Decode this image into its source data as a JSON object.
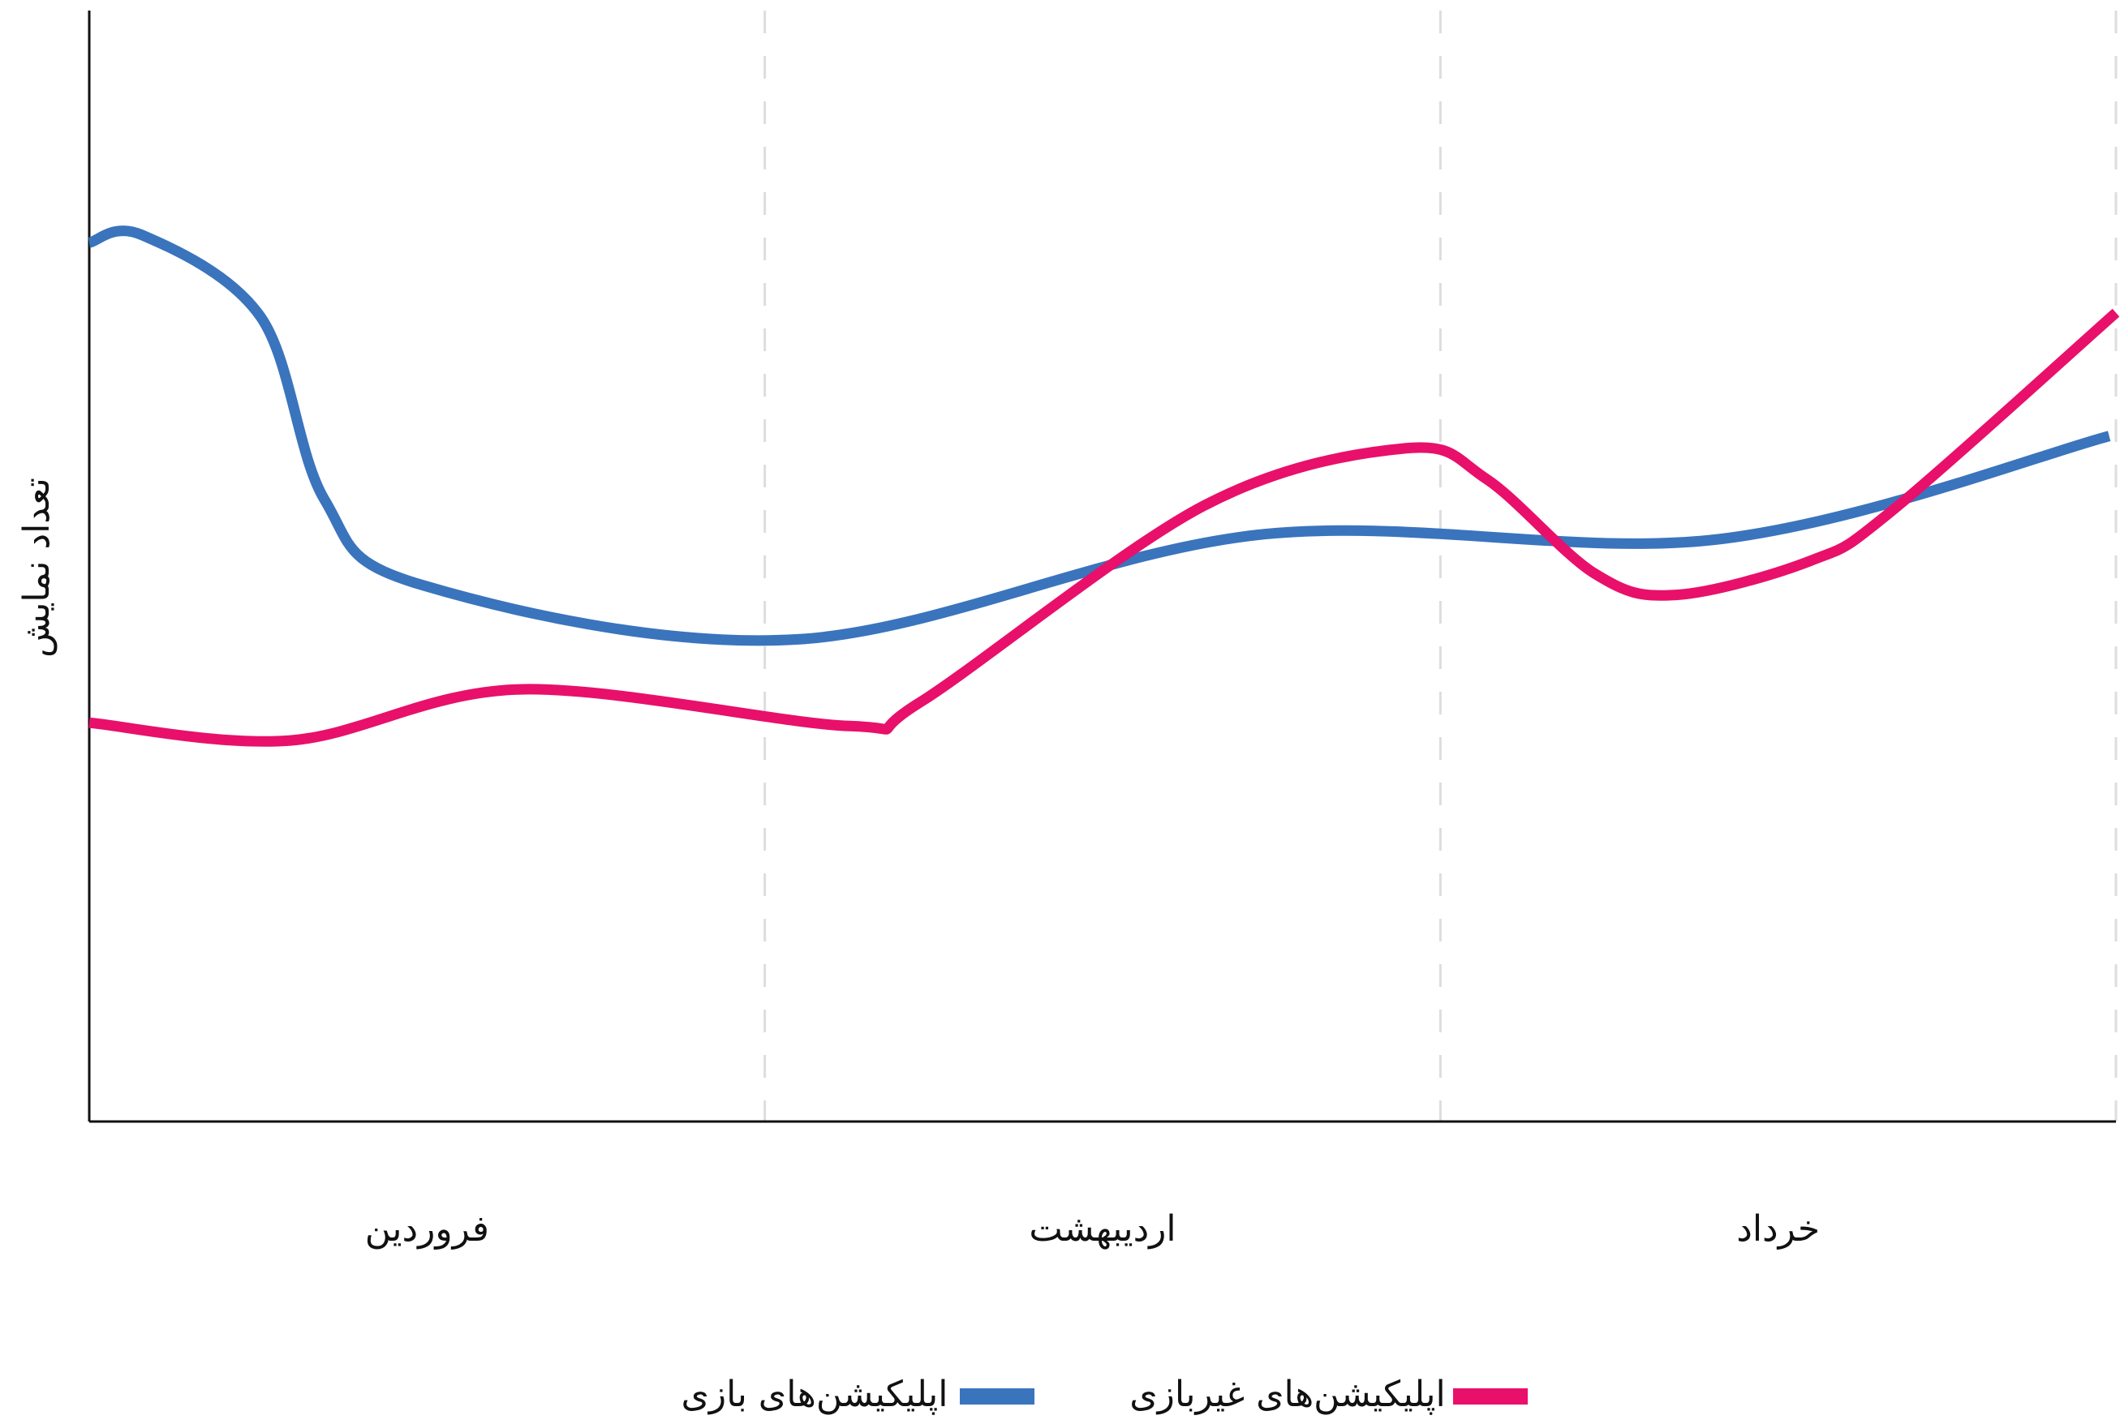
{
  "chart_data": {
    "type": "line",
    "y_label": "تعداد نمایش",
    "categories": [
      "فروردین",
      "اردیبهشت",
      "خرداد"
    ],
    "xlim": [
      0,
      3
    ],
    "ylim": [
      0,
      100
    ],
    "series": [
      {
        "name": "اپلیکیشن‌های بازی",
        "color": "#3a74bd",
        "x": [
          0,
          0.078,
          0.254,
          0.348,
          0.492,
          1.049,
          1.729,
          2.41,
          2.99
        ],
        "values": [
          79.1,
          79.8,
          72.4,
          56.0,
          48.3,
          43.4,
          52.8,
          52.4,
          61.7
        ]
      },
      {
        "name": "اپلیکیشن‌های غیربازی",
        "color": "#e8106a",
        "x": [
          0,
          0.298,
          0.638,
          1.125,
          1.229,
          1.649,
          1.949,
          2.069,
          2.229,
          2.349,
          2.549,
          2.669,
          3.0
        ],
        "values": [
          35.9,
          34.3,
          38.9,
          35.6,
          37.7,
          55.4,
          60.6,
          57.8,
          49.3,
          47.4,
          50.5,
          55.0,
          72.8
        ]
      }
    ]
  }
}
